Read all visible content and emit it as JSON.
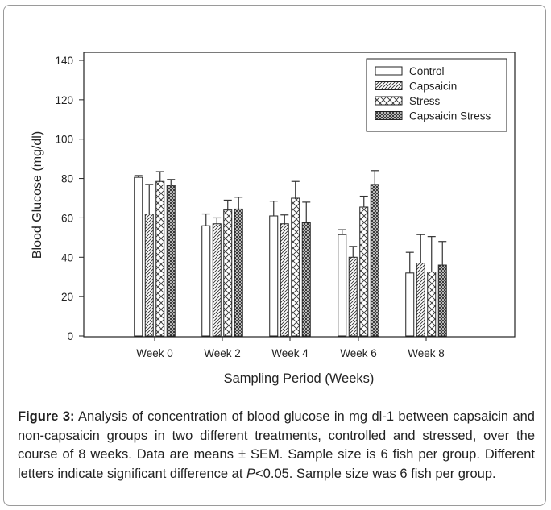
{
  "chart_data": {
    "type": "bar",
    "title": "",
    "xlabel": "Sampling Period (Weeks)",
    "ylabel": "Blood Glucose (mg/dl)",
    "ylim": [
      0,
      140
    ],
    "yticks": [
      0,
      20,
      40,
      60,
      80,
      100,
      120,
      140
    ],
    "categories": [
      "Week 0",
      "Week 2",
      "Week 4",
      "Week 6",
      "Week 8"
    ],
    "legend_position": "top-right",
    "grid": false,
    "series": [
      {
        "name": "Control",
        "pattern": "none",
        "values": [
          80.6,
          56,
          61,
          51.5,
          32
        ],
        "error_upper": [
          81.5,
          62,
          68.5,
          54,
          42.5
        ]
      },
      {
        "name": "Capsaicin",
        "pattern": "diagonal",
        "values": [
          62,
          57,
          57,
          40,
          37
        ],
        "error_upper": [
          77,
          60,
          61.5,
          45.5,
          51.5
        ]
      },
      {
        "name": "Stress",
        "pattern": "cross",
        "values": [
          78.5,
          64,
          70,
          65.5,
          32.5
        ],
        "error_upper": [
          83.5,
          69,
          78.5,
          71,
          50.5
        ]
      },
      {
        "name": "Capsaicin Stress",
        "pattern": "dense-cross",
        "values": [
          76.5,
          64.5,
          57.5,
          77,
          36
        ],
        "error_upper": [
          79.5,
          70.5,
          68,
          84,
          48
        ]
      }
    ]
  },
  "caption": {
    "label": "Figure 3:",
    "text_before_p": " Analysis of concentration of blood glucose in mg dl-1 between capsaicin and non-capsaicin groups in two different treatments, controlled and stressed, over the course of 8 weeks. Data are means ± SEM. Sample size is 6 fish per group. Different letters indicate significant difference at ",
    "p_symbol": "P",
    "text_after_p": "<0.05. Sample size was 6 fish per group."
  }
}
